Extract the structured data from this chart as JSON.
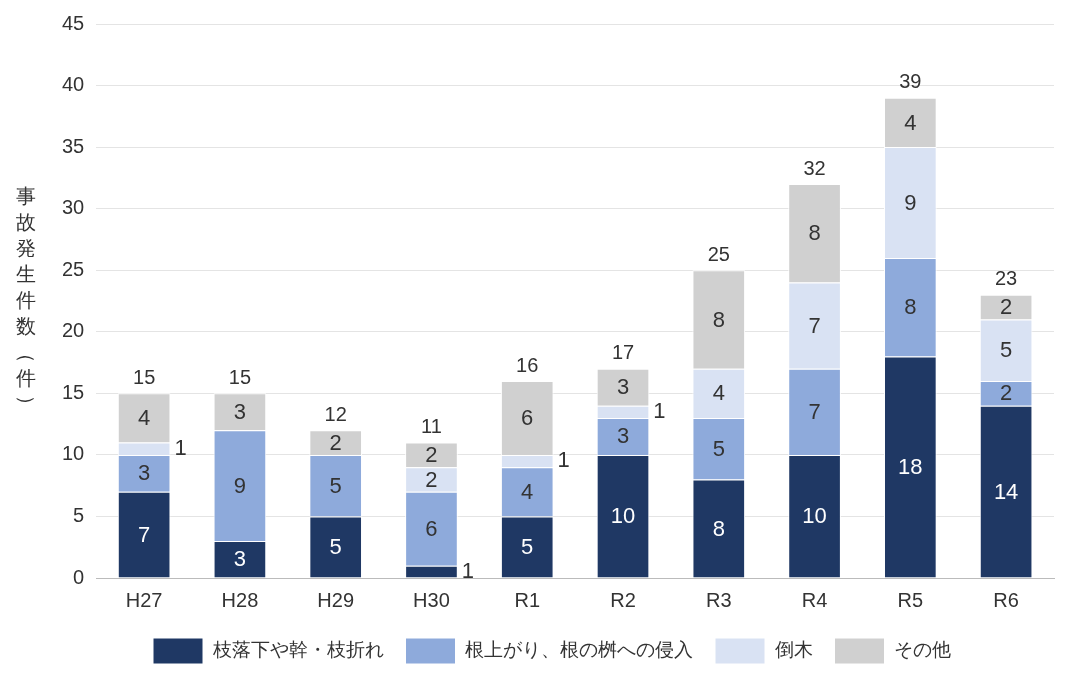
{
  "chart_data": {
    "type": "bar",
    "stacked": true,
    "ylabel": "事故発生件数（件）",
    "categories": [
      "H27",
      "H28",
      "H29",
      "H30",
      "R1",
      "R2",
      "R3",
      "R4",
      "R5",
      "R6"
    ],
    "series": [
      {
        "name": "枝落下や幹・枝折れ",
        "color": "#1f3864",
        "values": [
          7,
          3,
          5,
          1,
          5,
          10,
          8,
          10,
          18,
          14
        ],
        "value_labels": [
          "7",
          "3",
          "5",
          "1",
          "5",
          "10",
          "8",
          "10",
          "18",
          "14"
        ]
      },
      {
        "name": "根上がり、根の桝への侵入",
        "color": "#8eaadb",
        "values": [
          3,
          9,
          5,
          6,
          4,
          3,
          5,
          7,
          8,
          2
        ],
        "value_labels": [
          "3",
          "9",
          "5",
          "6",
          "4",
          "3",
          "5",
          "7",
          "8",
          "2"
        ]
      },
      {
        "name": "倒木",
        "color": "#d9e2f3",
        "values": [
          1,
          0,
          0,
          2,
          1,
          1,
          4,
          7,
          9,
          5
        ],
        "value_labels": [
          "1",
          null,
          null,
          "2",
          "1",
          "1",
          "4",
          "7",
          "9",
          "5"
        ]
      },
      {
        "name": "その他",
        "color": "#d0d0d0",
        "values": [
          4,
          3,
          2,
          2,
          6,
          3,
          8,
          8,
          4,
          2
        ],
        "value_labels": [
          "4",
          "3",
          "2",
          "2",
          "6",
          "3",
          "8",
          "8",
          "4",
          "2"
        ]
      }
    ],
    "totals": [
      "15",
      "15",
      "12",
      "11",
      "16",
      "17",
      "25",
      "32",
      "39",
      "23"
    ],
    "ylim": [
      0,
      45
    ],
    "yticks": [
      0,
      5,
      10,
      15,
      20,
      25,
      30,
      35,
      40,
      45
    ],
    "grid": "y",
    "legend": "bottom"
  }
}
